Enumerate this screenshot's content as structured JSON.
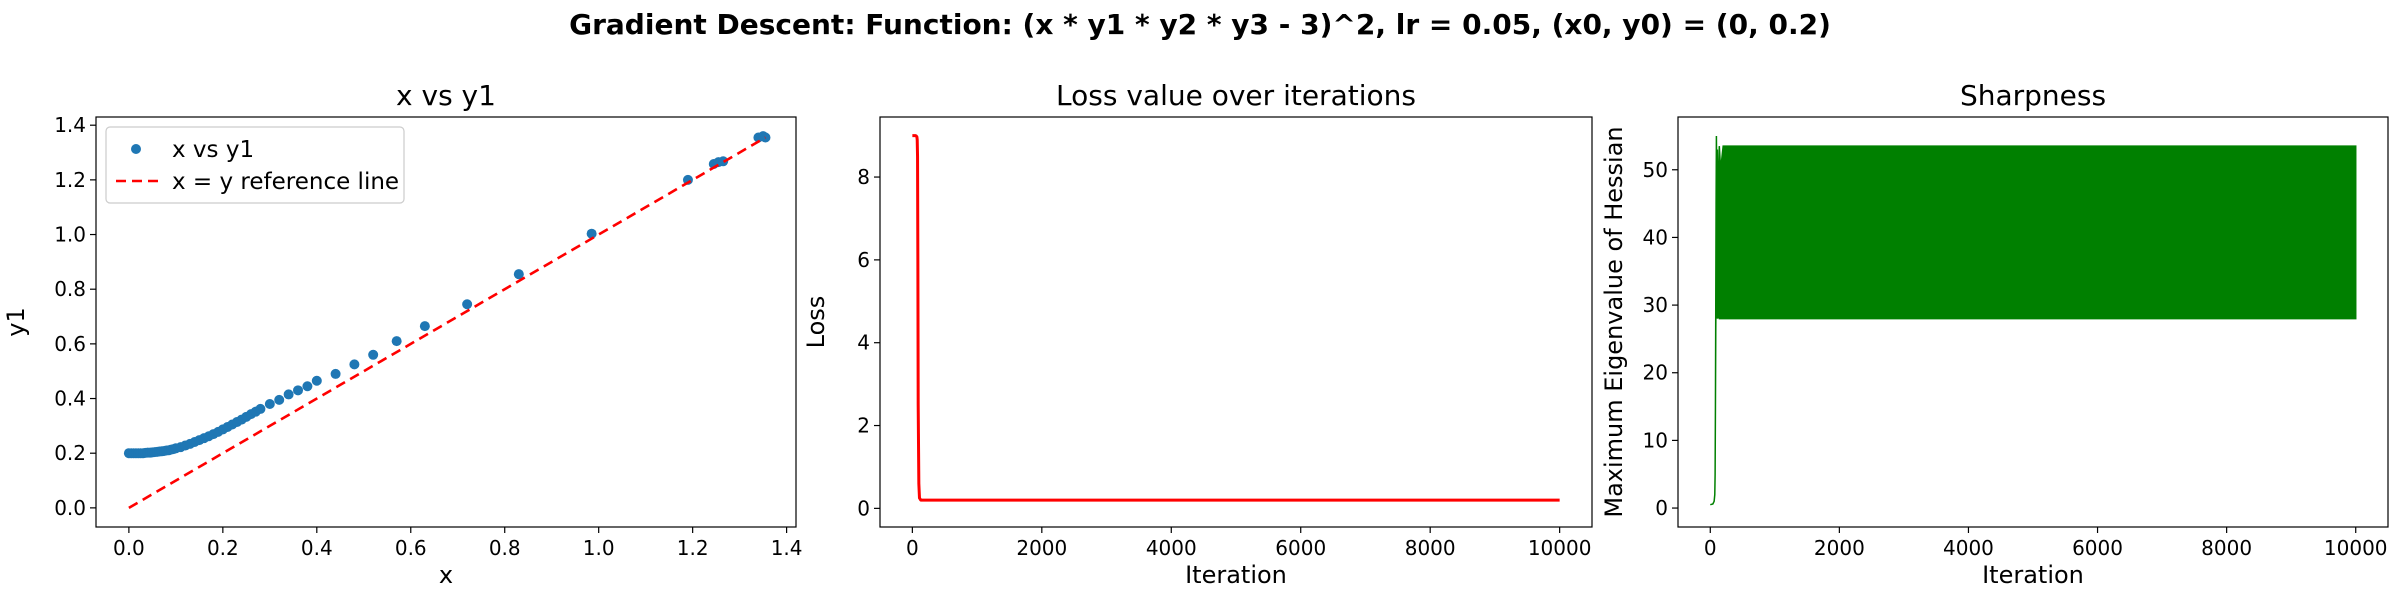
{
  "suptitle": "Gradient Descent: Function: (x * y1 * y2 * y3 - 3)^2, lr = 0.05, (x0, y0) = (0, 0.2)",
  "chart_data": [
    {
      "type": "scatter",
      "title": "x vs y1",
      "xlabel": "x",
      "ylabel": "y1",
      "xlim": [
        -0.07,
        1.42
      ],
      "ylim": [
        -0.07,
        1.43
      ],
      "xticks": [
        0.0,
        0.2,
        0.4,
        0.6,
        0.8,
        1.0,
        1.2,
        1.4
      ],
      "yticks": [
        0.0,
        0.2,
        0.4,
        0.6,
        0.8,
        1.0,
        1.2,
        1.4
      ],
      "xtick_labels": [
        "0.0",
        "0.2",
        "0.4",
        "0.6",
        "0.8",
        "1.0",
        "1.2",
        "1.4"
      ],
      "ytick_labels": [
        "0.0",
        "0.2",
        "0.4",
        "0.6",
        "0.8",
        "1.0",
        "1.2",
        "1.4"
      ],
      "legend": {
        "placement": "upper-left",
        "entries": [
          "x vs y1",
          "x = y reference line"
        ]
      },
      "series": [
        {
          "name": "x vs y1",
          "kind": "points",
          "color": "#1f77b4",
          "points": [
            [
              0.0,
              0.2
            ],
            [
              0.005,
              0.2
            ],
            [
              0.01,
              0.2
            ],
            [
              0.015,
              0.2
            ],
            [
              0.02,
              0.2
            ],
            [
              0.025,
              0.2
            ],
            [
              0.03,
              0.2
            ],
            [
              0.035,
              0.201
            ],
            [
              0.04,
              0.202
            ],
            [
              0.045,
              0.202
            ],
            [
              0.05,
              0.203
            ],
            [
              0.055,
              0.204
            ],
            [
              0.06,
              0.205
            ],
            [
              0.065,
              0.206
            ],
            [
              0.07,
              0.207
            ],
            [
              0.075,
              0.208
            ],
            [
              0.08,
              0.21
            ],
            [
              0.085,
              0.211
            ],
            [
              0.09,
              0.213
            ],
            [
              0.095,
              0.215
            ],
            [
              0.1,
              0.218
            ],
            [
              0.11,
              0.222
            ],
            [
              0.12,
              0.228
            ],
            [
              0.13,
              0.234
            ],
            [
              0.14,
              0.241
            ],
            [
              0.15,
              0.248
            ],
            [
              0.16,
              0.255
            ],
            [
              0.17,
              0.262
            ],
            [
              0.18,
              0.27
            ],
            [
              0.19,
              0.278
            ],
            [
              0.2,
              0.287
            ],
            [
              0.21,
              0.296
            ],
            [
              0.22,
              0.305
            ],
            [
              0.23,
              0.314
            ],
            [
              0.24,
              0.323
            ],
            [
              0.25,
              0.333
            ],
            [
              0.26,
              0.343
            ],
            [
              0.27,
              0.352
            ],
            [
              0.28,
              0.362
            ],
            [
              0.3,
              0.38
            ],
            [
              0.32,
              0.395
            ],
            [
              0.34,
              0.415
            ],
            [
              0.36,
              0.43
            ],
            [
              0.38,
              0.445
            ],
            [
              0.4,
              0.465
            ],
            [
              0.44,
              0.49
            ],
            [
              0.48,
              0.525
            ],
            [
              0.52,
              0.56
            ],
            [
              0.57,
              0.61
            ],
            [
              0.63,
              0.665
            ],
            [
              0.72,
              0.745
            ],
            [
              0.83,
              0.855
            ],
            [
              0.985,
              1.003
            ],
            [
              1.19,
              1.2
            ],
            [
              1.245,
              1.258
            ],
            [
              1.255,
              1.265
            ],
            [
              1.265,
              1.268
            ],
            [
              1.34,
              1.355
            ],
            [
              1.35,
              1.36
            ],
            [
              1.355,
              1.355
            ]
          ]
        },
        {
          "name": "x = y reference line",
          "kind": "dashed-line",
          "color": "#ff0000",
          "points": [
            [
              0.0,
              0.0
            ],
            [
              1.355,
              1.355
            ]
          ]
        }
      ]
    },
    {
      "type": "line",
      "title": "Loss value over iterations",
      "xlabel": "Iteration",
      "ylabel": "Loss",
      "xlim": [
        -500,
        10500
      ],
      "ylim": [
        -0.45,
        9.45
      ],
      "xticks": [
        0,
        2000,
        4000,
        6000,
        8000,
        10000
      ],
      "yticks": [
        0,
        2,
        4,
        6,
        8
      ],
      "xtick_labels": [
        "0",
        "2000",
        "4000",
        "6000",
        "8000",
        "10000"
      ],
      "ytick_labels": [
        "0",
        "2",
        "4",
        "6",
        "8"
      ],
      "series": [
        {
          "name": "",
          "color": "#ff0000",
          "x": [
            0,
            50,
            60,
            70,
            75,
            80,
            85,
            90,
            100,
            110,
            130,
            200,
            1000,
            5000,
            10000
          ],
          "y": [
            9.0,
            9.0,
            8.99,
            8.97,
            8.9,
            8.5,
            6.0,
            2.5,
            0.6,
            0.25,
            0.2,
            0.2,
            0.2,
            0.2,
            0.2
          ]
        }
      ]
    },
    {
      "type": "area",
      "title": "Sharpness",
      "xlabel": "Iteration",
      "ylabel": "Maximum Eigenvalue of Hessian",
      "xlim": [
        -500,
        10500
      ],
      "ylim": [
        -2.8,
        57.8
      ],
      "xticks": [
        0,
        2000,
        4000,
        6000,
        8000,
        10000
      ],
      "yticks": [
        0,
        10,
        20,
        30,
        40,
        50
      ],
      "xtick_labels": [
        "0",
        "2000",
        "4000",
        "6000",
        "8000",
        "10000"
      ],
      "ytick_labels": [
        "0",
        "10",
        "20",
        "30",
        "40",
        "50"
      ],
      "series": [
        {
          "name": "",
          "color": "#008000",
          "x": [
            0,
            40,
            60,
            70,
            75,
            80,
            85,
            90,
            95,
            100,
            110,
            120,
            140,
            160,
            200,
            10000
          ],
          "upper": [
            0.5,
            0.6,
            1.0,
            2.0,
            5.0,
            15.0,
            30.0,
            45.0,
            55.0,
            49.0,
            53.0,
            44.0,
            53.5,
            50.0,
            53.5,
            53.5
          ],
          "lower": [
            0.5,
            0.6,
            1.0,
            2.0,
            5.0,
            15.0,
            26.0,
            33.0,
            28.0,
            30.0,
            28.0,
            28.5,
            28.0,
            28.0,
            28.0,
            28.0
          ]
        }
      ]
    }
  ]
}
